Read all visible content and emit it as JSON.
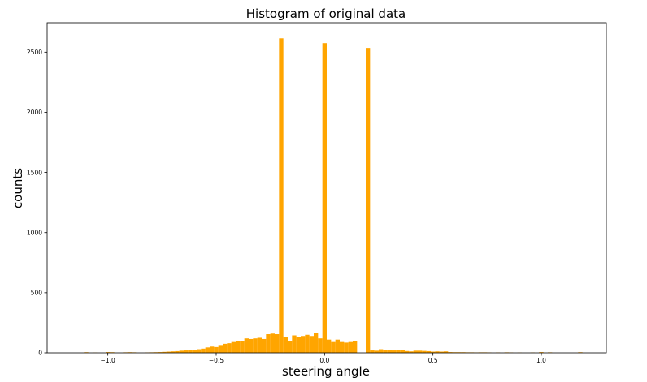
{
  "chart_data": {
    "type": "bar",
    "title": "Histogram of original data",
    "xlabel": "steering angle",
    "ylabel": "counts",
    "xlim": [
      -1.28,
      1.3
    ],
    "ylim": [
      0,
      2745
    ],
    "bar_color": "#ffa500",
    "grid": false,
    "xticks": [
      -1.0,
      -0.5,
      0.0,
      0.5,
      1.0
    ],
    "xtick_labels": [
      "−1.0",
      "−0.5",
      "0.0",
      "0.5",
      "1.0"
    ],
    "yticks": [
      0,
      500,
      1000,
      1500,
      2000,
      2500
    ],
    "ytick_labels": [
      "0",
      "500",
      "1000",
      "1500",
      "2000",
      "2500"
    ],
    "bin_width": 0.02,
    "bins": [
      {
        "x": -1.1,
        "count": 5
      },
      {
        "x": -1.06,
        "count": 2
      },
      {
        "x": -1.0,
        "count": 6
      },
      {
        "x": -0.98,
        "count": 5
      },
      {
        "x": -0.92,
        "count": 4
      },
      {
        "x": -0.9,
        "count": 5
      },
      {
        "x": -0.88,
        "count": 4
      },
      {
        "x": -0.82,
        "count": 3
      },
      {
        "x": -0.8,
        "count": 4
      },
      {
        "x": -0.78,
        "count": 5
      },
      {
        "x": -0.76,
        "count": 6
      },
      {
        "x": -0.74,
        "count": 8
      },
      {
        "x": -0.72,
        "count": 10
      },
      {
        "x": -0.7,
        "count": 12
      },
      {
        "x": -0.68,
        "count": 14
      },
      {
        "x": -0.66,
        "count": 18
      },
      {
        "x": -0.64,
        "count": 20
      },
      {
        "x": -0.62,
        "count": 22
      },
      {
        "x": -0.6,
        "count": 22
      },
      {
        "x": -0.58,
        "count": 30
      },
      {
        "x": -0.56,
        "count": 35
      },
      {
        "x": -0.54,
        "count": 45
      },
      {
        "x": -0.52,
        "count": 52
      },
      {
        "x": -0.5,
        "count": 48
      },
      {
        "x": -0.48,
        "count": 65
      },
      {
        "x": -0.46,
        "count": 75
      },
      {
        "x": -0.44,
        "count": 80
      },
      {
        "x": -0.42,
        "count": 90
      },
      {
        "x": -0.4,
        "count": 100
      },
      {
        "x": -0.38,
        "count": 100
      },
      {
        "x": -0.36,
        "count": 120
      },
      {
        "x": -0.34,
        "count": 115
      },
      {
        "x": -0.32,
        "count": 120
      },
      {
        "x": -0.3,
        "count": 125
      },
      {
        "x": -0.28,
        "count": 115
      },
      {
        "x": -0.26,
        "count": 155
      },
      {
        "x": -0.24,
        "count": 160
      },
      {
        "x": -0.22,
        "count": 155
      },
      {
        "x": -0.2,
        "count": 2615
      },
      {
        "x": -0.18,
        "count": 130
      },
      {
        "x": -0.16,
        "count": 100
      },
      {
        "x": -0.14,
        "count": 145
      },
      {
        "x": -0.12,
        "count": 130
      },
      {
        "x": -0.1,
        "count": 140
      },
      {
        "x": -0.08,
        "count": 150
      },
      {
        "x": -0.06,
        "count": 140
      },
      {
        "x": -0.04,
        "count": 165
      },
      {
        "x": -0.02,
        "count": 120
      },
      {
        "x": 0.0,
        "count": 2575
      },
      {
        "x": 0.02,
        "count": 110
      },
      {
        "x": 0.04,
        "count": 90
      },
      {
        "x": 0.06,
        "count": 110
      },
      {
        "x": 0.08,
        "count": 90
      },
      {
        "x": 0.1,
        "count": 85
      },
      {
        "x": 0.12,
        "count": 90
      },
      {
        "x": 0.14,
        "count": 95
      },
      {
        "x": 0.2,
        "count": 2535
      },
      {
        "x": 0.22,
        "count": 20
      },
      {
        "x": 0.24,
        "count": 18
      },
      {
        "x": 0.26,
        "count": 30
      },
      {
        "x": 0.28,
        "count": 25
      },
      {
        "x": 0.3,
        "count": 22
      },
      {
        "x": 0.32,
        "count": 20
      },
      {
        "x": 0.34,
        "count": 25
      },
      {
        "x": 0.36,
        "count": 22
      },
      {
        "x": 0.38,
        "count": 15
      },
      {
        "x": 0.4,
        "count": 12
      },
      {
        "x": 0.42,
        "count": 18
      },
      {
        "x": 0.44,
        "count": 18
      },
      {
        "x": 0.46,
        "count": 16
      },
      {
        "x": 0.48,
        "count": 14
      },
      {
        "x": 0.5,
        "count": 10
      },
      {
        "x": 0.52,
        "count": 12
      },
      {
        "x": 0.54,
        "count": 10
      },
      {
        "x": 0.56,
        "count": 12
      },
      {
        "x": 0.58,
        "count": 6
      },
      {
        "x": 0.6,
        "count": 5
      },
      {
        "x": 0.62,
        "count": 5
      },
      {
        "x": 0.64,
        "count": 5
      },
      {
        "x": 0.66,
        "count": 4
      },
      {
        "x": 0.68,
        "count": 4
      },
      {
        "x": 0.7,
        "count": 3
      },
      {
        "x": 0.72,
        "count": 4
      },
      {
        "x": 0.74,
        "count": 4
      },
      {
        "x": 0.76,
        "count": 3
      },
      {
        "x": 0.8,
        "count": 3
      },
      {
        "x": 0.84,
        "count": 4
      },
      {
        "x": 0.86,
        "count": 3
      },
      {
        "x": 0.9,
        "count": 2
      },
      {
        "x": 0.96,
        "count": 3
      },
      {
        "x": 1.0,
        "count": 6
      },
      {
        "x": 1.04,
        "count": 4
      },
      {
        "x": 1.18,
        "count": 5
      }
    ]
  }
}
